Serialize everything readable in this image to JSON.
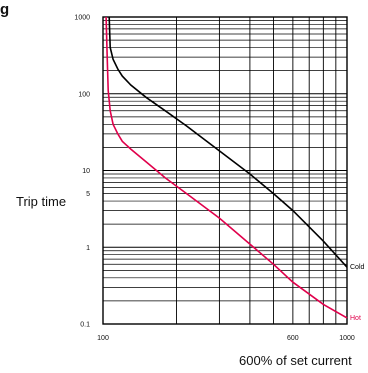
{
  "heading_fragment": "g",
  "chart_data": {
    "type": "line",
    "title": "",
    "xlabel": "600% of set current",
    "ylabel": "Trip time",
    "x_scale": "log",
    "y_scale": "log",
    "xlim": [
      100,
      1000
    ],
    "ylim": [
      0.1,
      1000
    ],
    "grid": true,
    "x_tick_labels": [
      {
        "value": 100,
        "label": "100"
      },
      {
        "value": 600,
        "label": "600"
      },
      {
        "value": 1000,
        "label": "1000"
      }
    ],
    "y_tick_labels": [
      {
        "value": 1000,
        "label": "1000"
      },
      {
        "value": 100,
        "label": "100"
      },
      {
        "value": 10,
        "label": "10"
      },
      {
        "value": 5,
        "label": "5"
      },
      {
        "value": 1,
        "label": "1"
      },
      {
        "value": 0.1,
        "label": "0.1"
      }
    ],
    "series": [
      {
        "name": "Cold",
        "color": "#000000",
        "x": [
          106,
          107,
          110,
          115,
          120,
          130,
          150,
          180,
          220,
          300,
          400,
          500,
          600,
          800,
          1000
        ],
        "y": [
          1000,
          400,
          280,
          210,
          170,
          130,
          90,
          60,
          38,
          18,
          9,
          5,
          3,
          1.2,
          0.55
        ]
      },
      {
        "name": "Hot",
        "color": "#e0004b",
        "x": [
          103,
          104,
          105,
          107,
          110,
          115,
          120,
          130,
          150,
          180,
          220,
          300,
          400,
          500,
          600,
          800,
          1000
        ],
        "y": [
          1000,
          300,
          110,
          60,
          40,
          30,
          24,
          19,
          13,
          8,
          5,
          2.4,
          1.1,
          0.6,
          0.35,
          0.18,
          0.12
        ]
      }
    ]
  }
}
